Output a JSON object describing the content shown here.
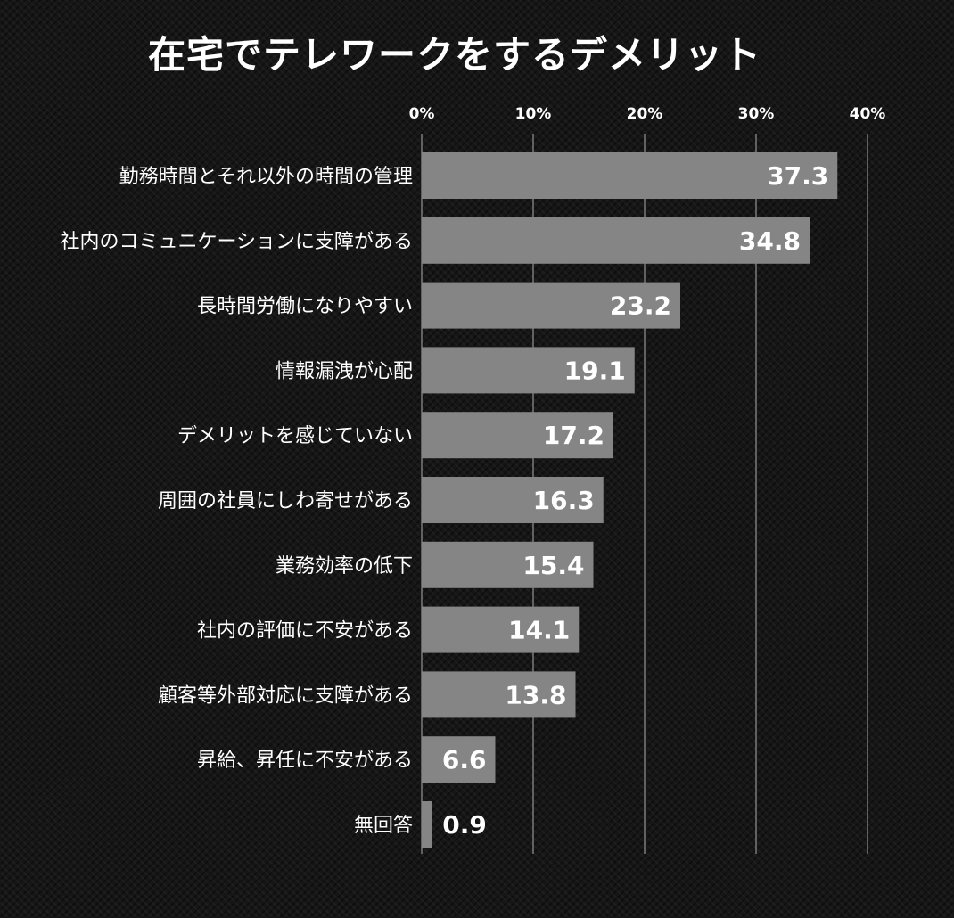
{
  "chart_data": {
    "type": "bar",
    "orientation": "horizontal",
    "title": "在宅でテレワークをするデメリット",
    "categories": [
      "勤務時間とそれ以外の時間の管理",
      "社内のコミュニケーションに支障がある",
      "長時間労働になりやすい",
      "情報漏洩が心配",
      "デメリットを感じていない",
      "周囲の社員にしわ寄せがある",
      "業務効率の低下",
      "社内の評価に不安がある",
      "顧客等外部対応に支障がある",
      "昇給、昇任に不安がある",
      "無回答"
    ],
    "values": [
      37.3,
      34.8,
      23.2,
      19.1,
      17.2,
      16.3,
      15.4,
      14.1,
      13.8,
      6.6,
      0.9
    ],
    "value_labels": [
      "37.3",
      "34.8",
      "23.2",
      "19.1",
      "17.2",
      "16.3",
      "15.4",
      "14.1",
      "13.8",
      "6.6",
      "0.9"
    ],
    "x_ticks": [
      "0%",
      "10%",
      "20%",
      "30%",
      "40%"
    ],
    "xlim": [
      0,
      40
    ],
    "grid": true,
    "colors": {
      "bar": "#858585",
      "gridline": "#7a7a7a",
      "text": "#ffffff"
    }
  }
}
